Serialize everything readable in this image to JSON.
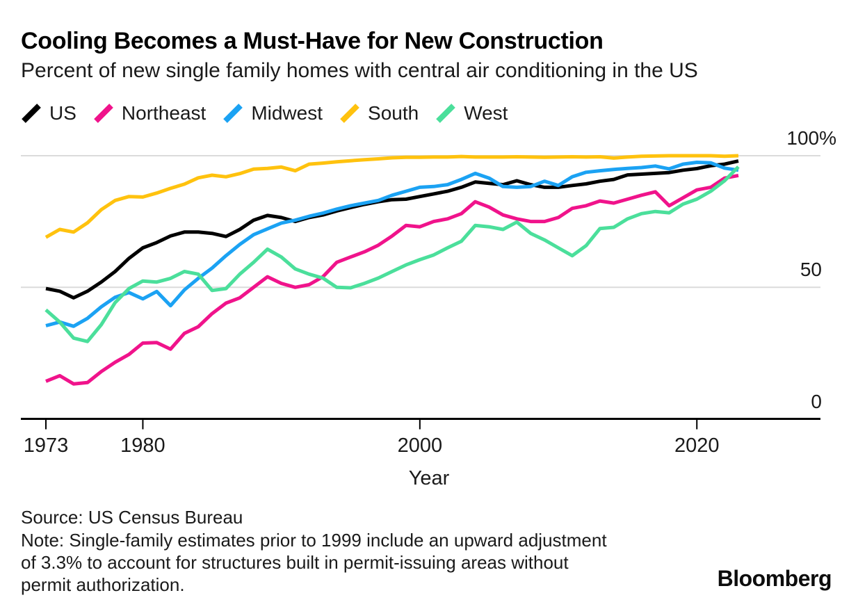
{
  "header": {
    "title": "Cooling Becomes a Must-Have for New Construction",
    "subtitle": "Percent of new single family homes with central air conditioning in the US"
  },
  "chart_data": {
    "type": "line",
    "title": "Cooling Becomes a Must-Have for New Construction",
    "subtitle": "Percent of new single family homes with central air conditioning in the US",
    "xlabel": "Year",
    "ylabel": "Percent of new single family homes with central air conditioning",
    "ylim": [
      0,
      100
    ],
    "grid": "horizontal",
    "legend_position": "top-left",
    "x": [
      1973,
      1974,
      1975,
      1976,
      1977,
      1978,
      1979,
      1980,
      1981,
      1982,
      1983,
      1984,
      1985,
      1986,
      1987,
      1988,
      1989,
      1990,
      1991,
      1992,
      1993,
      1994,
      1995,
      1996,
      1997,
      1998,
      1999,
      2000,
      2001,
      2002,
      2003,
      2004,
      2005,
      2006,
      2007,
      2008,
      2009,
      2010,
      2011,
      2012,
      2013,
      2014,
      2015,
      2016,
      2017,
      2018,
      2019,
      2020,
      2021,
      2022,
      2023
    ],
    "x_ticks": [
      {
        "value": 1973,
        "label": "1973"
      },
      {
        "value": 1980,
        "label": "1980"
      },
      {
        "value": 2000,
        "label": "2000"
      },
      {
        "value": 2020,
        "label": "2020"
      }
    ],
    "y_ticks": [
      {
        "value": 100,
        "label": "100%"
      },
      {
        "value": 50,
        "label": "50"
      },
      {
        "value": 0,
        "label": "0"
      }
    ],
    "series": [
      {
        "name": "US",
        "color": "#000000",
        "values": [
          49.5,
          48.5,
          46,
          48.5,
          52,
          56,
          61,
          65,
          67,
          69.5,
          71,
          71,
          70.5,
          69.3,
          72,
          75.5,
          77.3,
          76.5,
          75,
          76.5,
          77.5,
          79,
          80.3,
          81.5,
          82.5,
          83.3,
          83.5,
          84.5,
          85.5,
          86.5,
          88,
          90,
          89.5,
          89,
          90.5,
          89,
          88,
          88,
          88.7,
          89.3,
          90.3,
          91,
          92.7,
          93,
          93.3,
          93.6,
          94.5,
          95.1,
          96.2,
          96.8,
          98
        ]
      },
      {
        "name": "Northeast",
        "color": "#f0138b",
        "values": [
          14.3,
          16.4,
          13.3,
          13.8,
          18,
          21.5,
          24.5,
          28.8,
          29,
          26.5,
          32.5,
          35,
          40,
          44,
          46,
          50,
          54,
          51.5,
          50,
          51,
          54,
          59.5,
          61.5,
          63.5,
          66,
          69.5,
          73.5,
          73,
          75,
          76,
          78,
          82.5,
          80.5,
          77.5,
          76,
          75,
          75,
          76.5,
          80,
          81,
          82.8,
          82,
          83.5,
          85,
          86.3,
          81,
          84,
          87,
          88,
          91.5,
          92.5
        ]
      },
      {
        "name": "Midwest",
        "color": "#1ba2f3",
        "values": [
          35.4,
          36.8,
          35.2,
          38.2,
          42.6,
          46.2,
          48,
          45.6,
          48.4,
          43,
          49,
          53.4,
          57.3,
          62,
          66.3,
          70,
          72.2,
          74.4,
          75.5,
          77,
          78.2,
          79.7,
          81,
          82,
          83,
          85,
          86.5,
          88,
          88.3,
          89,
          91,
          93.3,
          91.5,
          88.3,
          88,
          88.3,
          90.3,
          88.7,
          92,
          93.7,
          94.3,
          94.8,
          95.2,
          95.5,
          96.1,
          95,
          96.8,
          97.5,
          97.3,
          95.3,
          94.5
        ]
      },
      {
        "name": "South",
        "color": "#ffc20e",
        "values": [
          69,
          72,
          71,
          74.5,
          79.5,
          83,
          84.5,
          84.3,
          85.8,
          87.6,
          89.2,
          91.6,
          92.6,
          92,
          93.2,
          94.9,
          95.2,
          95.7,
          94.3,
          96.8,
          97.2,
          97.7,
          98.1,
          98.5,
          98.8,
          99.2,
          99.4,
          99.4,
          99.5,
          99.5,
          99.7,
          99.5,
          99.5,
          99.5,
          99.6,
          99.5,
          99.4,
          99.5,
          99.6,
          99.5,
          99.6,
          99.1,
          99.5,
          99.8,
          99.9,
          100,
          100,
          100,
          100,
          99.8,
          100
        ]
      },
      {
        "name": "West",
        "color": "#4bdf9b",
        "values": [
          41.4,
          36.8,
          30.7,
          29.4,
          35.8,
          44.2,
          49.5,
          52.4,
          52,
          53.4,
          56,
          55,
          48.8,
          49.5,
          55,
          59.5,
          64.5,
          61.5,
          57,
          55,
          53.5,
          50,
          49.8,
          51.5,
          53.5,
          56,
          58.5,
          60.5,
          62.3,
          65,
          67.5,
          73.5,
          73,
          72,
          74.8,
          70.5,
          68,
          65,
          62,
          65.8,
          72.3,
          72.8,
          76,
          78,
          78.8,
          78.3,
          81.6,
          83.5,
          86.5,
          90.5,
          95.8
        ]
      }
    ]
  },
  "footer": {
    "source": "Source: US Census Bureau",
    "note_lines": [
      "Note: Single-family estimates prior to 1999 include an upward adjustment",
      "of 3.3% to account for structures built in permit-issuing areas without",
      "permit authorization."
    ],
    "brand": "Bloomberg"
  }
}
